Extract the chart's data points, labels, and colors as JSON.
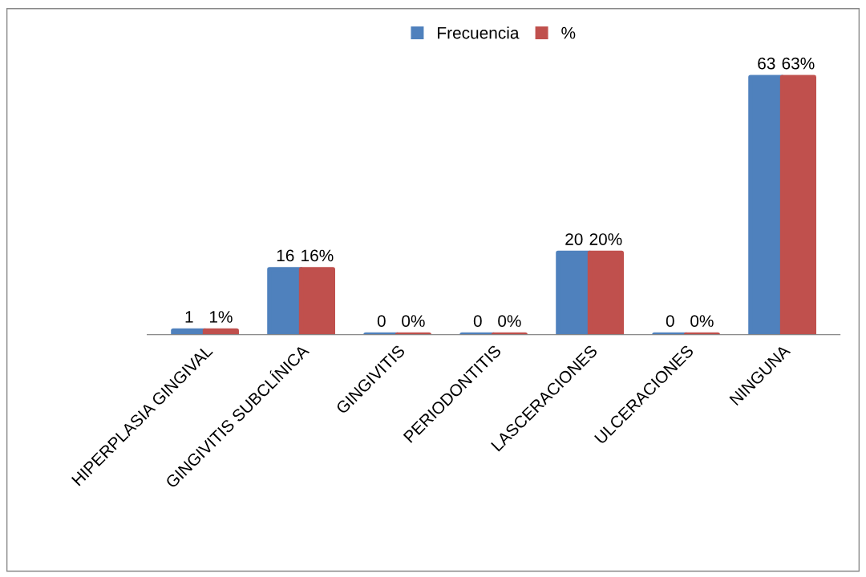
{
  "chart_data": {
    "type": "bar",
    "categories": [
      "HIPERPLASIA GINGIVAL",
      "GINGIVITIS SUBCLÍNICA",
      "GINGIVITIS",
      "PERIODONTITIS",
      "LASCERACIONES",
      "ULCERACIONES",
      "NINGUNA"
    ],
    "series": [
      {
        "name": "Frecuencia",
        "color": "#4f81bd",
        "values": [
          1,
          16,
          0,
          0,
          20,
          0,
          63
        ],
        "value_labels": [
          "1",
          "16",
          "0",
          "0",
          "20",
          "0",
          "63"
        ]
      },
      {
        "name": "%",
        "color": "#c0504d",
        "values": [
          1,
          16,
          0,
          0,
          20,
          0,
          63
        ],
        "value_labels": [
          "1%",
          "16%",
          "0%",
          "0%",
          "20%",
          "0%",
          "63%"
        ]
      }
    ],
    "legend": "top",
    "grid": false
  }
}
